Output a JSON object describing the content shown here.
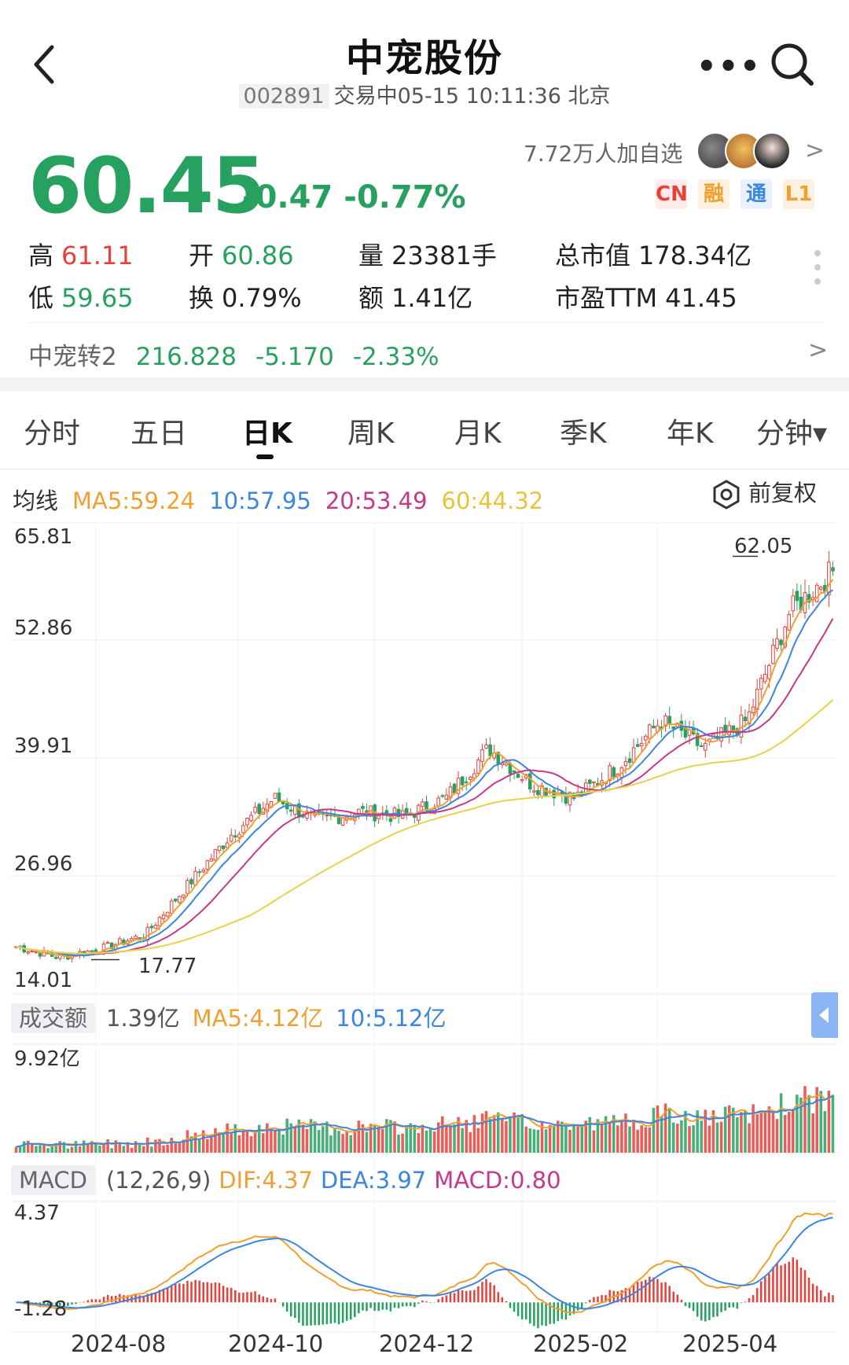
{
  "header": {
    "title": "中宠股份",
    "code": "002891",
    "status": "交易中05-15 10:11:36 北京"
  },
  "quote": {
    "price": "60.45",
    "change": "-0.47 -0.77%",
    "favorites": "7.72万人加自选",
    "tags": [
      {
        "label": "CN",
        "color": "#e8413b"
      },
      {
        "label": "融",
        "color": "#f0a030"
      },
      {
        "label": "通",
        "color": "#3a86e0"
      },
      {
        "label": "L1",
        "color": "#f0a030"
      }
    ]
  },
  "stats": {
    "high_label": "高",
    "high": "61.11",
    "low_label": "低",
    "low": "59.65",
    "open_label": "开",
    "open": "60.86",
    "turnover_label": "换",
    "turnover": "0.79%",
    "volume_label": "量",
    "volume": "23381手",
    "amount_label": "额",
    "amount": "1.41亿",
    "mktcap_label": "总市值",
    "mktcap": "178.34亿",
    "pe_label": "市盈TTM",
    "pe": "41.45"
  },
  "convertible": {
    "name": "中宠转2",
    "price": "216.828",
    "change": "-5.170",
    "pct": "-2.33%"
  },
  "tabs": [
    "分时",
    "五日",
    "日K",
    "周K",
    "月K",
    "季K",
    "年K",
    "分钟▾"
  ],
  "active_tab": "日K",
  "ma_legend": {
    "label": "均线",
    "ma5": "MA5:59.24",
    "ma10": "10:57.95",
    "ma20": "20:53.49",
    "ma60": "60:44.32",
    "adjust": "前复权"
  },
  "colors": {
    "up": "#e8413b",
    "down": "#27a160",
    "ma5": "#f0a030",
    "ma10": "#3a86e0",
    "ma20": "#c8388a",
    "ma60": "#e8d24a"
  },
  "volume_legend": {
    "label": "成交额",
    "current": "1.39亿",
    "ma5": "MA5:4.12亿",
    "ma10": "10:5.12亿",
    "max": "9.92亿"
  },
  "macd_legend": {
    "label": "MACD",
    "params": "(12,26,9)",
    "dif": "DIF:4.37",
    "dea": "DEA:3.97",
    "macd": "MACD:0.80",
    "max": "4.37",
    "min": "-1.28"
  },
  "chart_data": [
    {
      "type": "candlestick",
      "title": "日K",
      "y_ticks": [
        "65.81",
        "52.86",
        "39.91",
        "26.96",
        "14.01"
      ],
      "ylim": [
        14.01,
        65.81
      ],
      "x_ticks": [
        "2024-08",
        "2024-10",
        "2024-12",
        "2025-02",
        "2025-04"
      ],
      "annotations": {
        "max": "62.05",
        "min": "17.77"
      },
      "close_path": [
        [
          "2024-07",
          19.2
        ],
        [
          "2024-08",
          18.0
        ],
        [
          "2024-09",
          19.0
        ],
        [
          "2024-09",
          20.5
        ],
        [
          "2024-10",
          26.0
        ],
        [
          "2024-10",
          31.5
        ],
        [
          "2024-11",
          35.5
        ],
        [
          "2024-11",
          33.0
        ],
        [
          "2024-12",
          34.0
        ],
        [
          "2024-12",
          33.5
        ],
        [
          "2025-01",
          35.5
        ],
        [
          "2025-01",
          41.0
        ],
        [
          "2025-02",
          37.0
        ],
        [
          "2025-02",
          35.5
        ],
        [
          "2025-03",
          39.0
        ],
        [
          "2025-03",
          44.0
        ],
        [
          "2025-04",
          41.0
        ],
        [
          "2025-04",
          44.0
        ],
        [
          "2025-05",
          56.0
        ],
        [
          "2025-05",
          60.45
        ]
      ]
    },
    {
      "type": "bar",
      "title": "成交额",
      "ylim": [
        0,
        9.92
      ],
      "unit": "亿"
    },
    {
      "type": "line",
      "title": "MACD",
      "ylim": [
        -1.28,
        4.37
      ]
    }
  ]
}
